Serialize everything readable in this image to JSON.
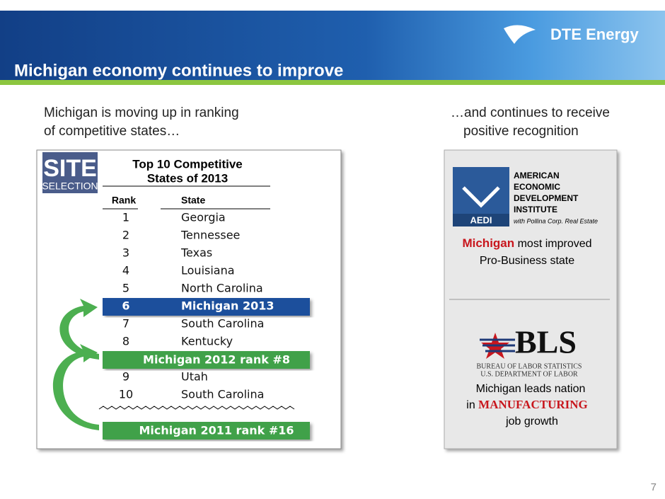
{
  "header": {
    "title": "Michigan economy continues to improve",
    "logo": "DTE Energy"
  },
  "left": {
    "intro": [
      "Michigan is moving up in ranking",
      "of competitive states…"
    ],
    "logo": {
      "top": "SITE",
      "bottom": "SELECTION"
    },
    "table": {
      "title": [
        "Top 10 Competitive",
        "States of 2013"
      ],
      "columns": [
        "Rank",
        "State"
      ],
      "rows": [
        {
          "rank": 1,
          "state": "Georgia"
        },
        {
          "rank": 2,
          "state": "Tennessee"
        },
        {
          "rank": 3,
          "state": "Texas"
        },
        {
          "rank": 4,
          "state": "Louisiana"
        },
        {
          "rank": 5,
          "state": "North Carolina"
        },
        {
          "rank": 6,
          "state": "Michigan 2013",
          "highlight": true
        },
        {
          "rank": 7,
          "state": "South Carolina"
        },
        {
          "rank": 8,
          "state": "Kentucky"
        },
        {
          "rank": 9,
          "state": "Utah"
        },
        {
          "rank": 10,
          "state": "South Carolina"
        }
      ]
    },
    "callouts": [
      "Michigan 2012 rank #8",
      "Michigan 2011 rank #16"
    ]
  },
  "right": {
    "intro": [
      "…and continues to receive",
      "positive recognition"
    ],
    "aedi": {
      "abbr": "AEDI",
      "name": [
        "AMERICAN",
        "ECONOMIC",
        "DEVELOPMENT",
        "INSTITUTE"
      ],
      "partner": "with Pollina Corp. Real Estate",
      "caption": {
        "highlight": "Michigan",
        "rest": " most improved",
        "line2": "Pro-Business state"
      }
    },
    "bls": {
      "abbr": "BLS",
      "name": [
        "BUREAU OF LABOR STATISTICS",
        "U.S. DEPARTMENT OF LABOR"
      ],
      "caption": {
        "line1": "Michigan leads nation",
        "prefix": "in ",
        "highlight": "MANUFACTURING",
        "line3": "job growth"
      }
    }
  },
  "page_number": "7"
}
